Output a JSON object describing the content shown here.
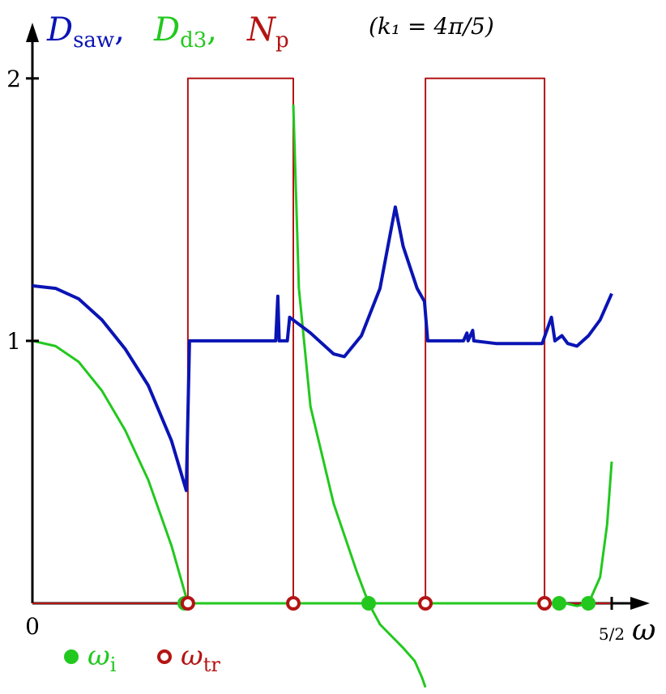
{
  "chart_data": {
    "type": "line",
    "title_separator": ",",
    "annotation": "(k₁ = 4π/5)",
    "x_label": "ω",
    "xlim": [
      0,
      2.5
    ],
    "ylim": [
      -0.33,
      2.2
    ],
    "xticks": [
      0,
      {
        "value": 2.5,
        "label": "5/2"
      }
    ],
    "yticks": [
      1,
      2
    ],
    "series": [
      {
        "name": "D",
        "subscript": "saw",
        "color": "#0a14b4",
        "width": 4,
        "x": [
          0,
          0.1,
          0.2,
          0.3,
          0.4,
          0.5,
          0.6,
          0.664,
          0.678,
          1.05,
          1.059,
          1.065,
          1.1,
          1.11,
          1.2,
          1.3,
          1.346,
          1.42,
          1.5,
          1.566,
          1.6,
          1.66,
          1.692,
          1.706,
          1.86,
          1.875,
          1.88,
          1.9,
          1.905,
          2.0,
          2.1,
          2.2,
          2.24,
          2.255,
          2.285,
          2.31,
          2.35,
          2.4,
          2.45,
          2.5
        ],
        "values": [
          1.21,
          1.2,
          1.16,
          1.08,
          0.97,
          0.83,
          0.62,
          0.43,
          1.0,
          1.0,
          1.17,
          1.0,
          1.0,
          1.09,
          1.03,
          0.95,
          0.94,
          1.02,
          1.2,
          1.51,
          1.36,
          1.2,
          1.15,
          1.0,
          1.0,
          1.03,
          1.0,
          1.04,
          1.0,
          0.99,
          0.99,
          0.99,
          1.09,
          1.0,
          1.02,
          0.99,
          0.98,
          1.02,
          1.08,
          1.18
        ]
      },
      {
        "name": "D",
        "subscript": "d3",
        "color": "#22c81e",
        "width": 3,
        "x": [
          0,
          0.1,
          0.2,
          0.3,
          0.4,
          0.5,
          0.6,
          0.671,
          2.3,
          2.35,
          2.4,
          2.45,
          2.48,
          2.5,
          null,
          1.126,
          1.15,
          1.2,
          1.3,
          1.4,
          1.451,
          1.5,
          1.6,
          1.65,
          1.68,
          1.696
        ],
        "values": [
          1,
          0.98,
          0.92,
          0.81,
          0.66,
          0.47,
          0.22,
          0,
          0,
          -0.01,
          0,
          0.1,
          0.3,
          0.54,
          null,
          1.9,
          1.2,
          0.75,
          0.38,
          0.12,
          0,
          -0.08,
          -0.17,
          -0.22,
          -0.28,
          -0.32
        ]
      },
      {
        "name": "N",
        "subscript": "p",
        "color": "#b41414",
        "width": 2,
        "x": [
          0,
          0.671,
          0.671,
          1.126,
          1.126,
          1.696,
          1.696,
          2.21,
          2.21,
          2.5
        ],
        "values": [
          0,
          0,
          2,
          2,
          0,
          0,
          2,
          2,
          0,
          0
        ]
      }
    ],
    "markers": [
      {
        "name": "ω",
        "subscript": "i",
        "color": "#22c81e",
        "style": "filled",
        "x": [
          0.657,
          1.451,
          2.273,
          2.399
        ]
      },
      {
        "name": "ω",
        "subscript": "tr",
        "color": "#b41414",
        "style": "open",
        "x": [
          0.671,
          1.126,
          1.696,
          2.21
        ]
      }
    ]
  }
}
